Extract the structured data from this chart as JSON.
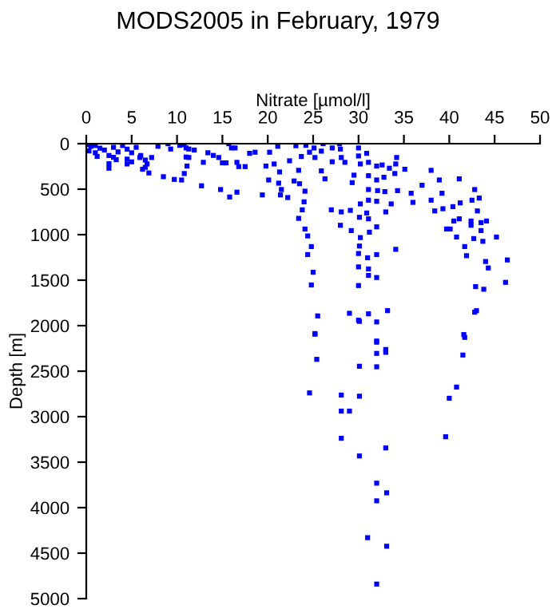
{
  "chart_data": {
    "type": "scatter",
    "title": "MODS2005 in February, 1979",
    "xlabel": "Nitrate [µmol/l]",
    "ylabel": "Depth [m]",
    "xlim": [
      0,
      50
    ],
    "xticks": [
      0,
      5,
      10,
      15,
      20,
      25,
      30,
      35,
      40,
      45,
      50
    ],
    "ylim": [
      5000,
      0
    ],
    "yticks": [
      0,
      500,
      1000,
      1500,
      2000,
      2500,
      3000,
      3500,
      4000,
      4500,
      5000
    ],
    "grid": false,
    "marker": "square",
    "series": [
      {
        "color": "#0000ff",
        "x": [
          0.2,
          0.5,
          1,
          1.5,
          0.3,
          1,
          2,
          2.5,
          3,
          3.5,
          4,
          4.5,
          5,
          5.5,
          3,
          4.5,
          5,
          6,
          6.5,
          1.2,
          2.5,
          6.5,
          2.5,
          3.3,
          4.5,
          5.9,
          6.2,
          6.7,
          7.2,
          6.9,
          7.9,
          9.0,
          9.3,
          10.3,
          10.8,
          11.0,
          11.3,
          11.9,
          11.0,
          11.1,
          10.8,
          10.5,
          9.7,
          8.5,
          11.3,
          12.7,
          12.9,
          13.4,
          14,
          14.6,
          15,
          15.4,
          14.8,
          15.8,
          16.6,
          15.7,
          16,
          16.4,
          16.6,
          16.8,
          17.5,
          18,
          18.6,
          19.4,
          20.1,
          19.8,
          20.2,
          20.7,
          21.1,
          21.3,
          21.2,
          21.5,
          21.4,
          22.2,
          22.4,
          22.9,
          23.1,
          23.4,
          23.5,
          23.7,
          24.2,
          24.1,
          24,
          23.8,
          23.4,
          24.1,
          24.4,
          24.8,
          24.4,
          25,
          24.8,
          25.5,
          25.2,
          24.6,
          25.1,
          25.2,
          26.1,
          25.9,
          25.9,
          26.3,
          27.1,
          27,
          27.1,
          27.9,
          28,
          28.1,
          28.1,
          28,
          28.5,
          29,
          29.5,
          29.3,
          29.1,
          29.2,
          30.0,
          30,
          30.2,
          30.2,
          30.1,
          30.2,
          30.1,
          30.0,
          30,
          30,
          30,
          30.9,
          31.1,
          31.1,
          31.1,
          31.1,
          30.9,
          31.1,
          31.2,
          31.0,
          31.1,
          31.1,
          31.1,
          32,
          32,
          32.1,
          32,
          32,
          32,
          32,
          32,
          32.6,
          32.8,
          32.9,
          33.0,
          33.2,
          33.0,
          33.4,
          34,
          34.1,
          34.2,
          34.1,
          33.6,
          34.3,
          35.1,
          35.8,
          36,
          37,
          38,
          38,
          38.4,
          38.9,
          39.2,
          39.3,
          39.7,
          40.1,
          40.4,
          40.5,
          40.8,
          41.1,
          41.2,
          41.1,
          41.7,
          41.9,
          42.5,
          42.4,
          42.4,
          42.7,
          42.8,
          42.9,
          43.3,
          43.1,
          43.5,
          43.5,
          43.7,
          43.8,
          44.1,
          44,
          44.3,
          45.2,
          46.2,
          46.4,
          42.8,
          43,
          41.6,
          25.2,
          25.4,
          24.6,
          28.1,
          28.1,
          29.0,
          28.1,
          30.1,
          30.1,
          30.1,
          30.1,
          32,
          32,
          32,
          32,
          33,
          33,
          32,
          33.1,
          32,
          31.0,
          33.1,
          32,
          41.7,
          41.5,
          40.8,
          40,
          39.6
        ],
        "values": [
          10,
          30,
          20,
          50,
          80,
          100,
          70,
          130,
          40,
          90,
          20,
          60,
          100,
          40,
          150,
          170,
          200,
          130,
          180,
          140,
          220,
          260,
          270,
          176,
          223,
          152,
          281,
          223,
          152,
          322,
          29,
          0,
          59,
          18,
          12,
          47,
          59,
          70,
          147,
          246,
          328,
          399,
          393,
          363,
          152,
          463,
          205,
          100,
          129,
          152,
          211,
          211,
          504,
          586,
          533,
          0,
          47,
          47,
          205,
          252,
          252,
          106,
          94,
          563,
          399,
          246,
          94,
          223,
          29,
          311,
          434,
          504,
          563,
          592,
          188,
          410,
          23,
          293,
          440,
          141,
          18,
          522,
          639,
          727,
          821,
          938,
          1014,
          1131,
          1219,
          1413,
          1553,
          1893,
          2087,
          94,
          47,
          152,
          0,
          82,
          299,
          387,
          199,
          727,
          47,
          0,
          59,
          152,
          750,
          897,
          205,
          1864,
          346,
          428,
          733,
          955,
          47,
          135,
          223,
          662,
          809,
          1032,
          1125,
          1207,
          1354,
          1559,
          1940,
          106,
          205,
          352,
          504,
          621,
          762,
          826,
          973,
          1254,
          1377,
          1448,
          1870,
          246,
          399,
          516,
          633,
          914,
          1219,
          1471,
          2169,
          234,
          369,
          527,
          750,
          1835,
          2262,
          270,
          328,
          223,
          152,
          1161,
          662,
          516,
          281,
          545,
          645,
          457,
          293,
          621,
          739,
          399,
          545,
          715,
          938,
          938,
          692,
          850,
          1026,
          387,
          651,
          826,
          1131,
          1231,
          621,
          850,
          897,
          1043,
          504,
          1571,
          598,
          739,
          868,
          955,
          1073,
          1600,
          850,
          1295,
          1366,
          1026,
          1524,
          1278,
          1852,
          1835,
          2098,
          2094,
          2370,
          2739,
          2763,
          2939,
          2939,
          3238,
          1953,
          2446,
          2775,
          3432,
          1959,
          2182,
          2305,
          2452,
          2293,
          3344,
          3731,
          3837,
          3925,
          4330,
          4424,
          4840,
          2129,
          2323,
          2675,
          2798,
          3221
        ]
      }
    ]
  }
}
